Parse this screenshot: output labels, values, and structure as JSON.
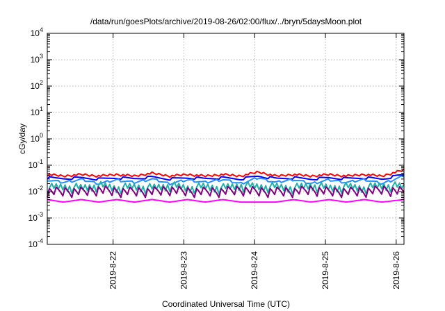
{
  "chart_data": {
    "type": "line",
    "title": "/data/run/goesPlots/archive/2019-08-26/02:00/flux/../bryn/5daysMoon.plot",
    "xlabel": "Coordinated Universal Time (UTC)",
    "ylabel": "cGy/day",
    "yscale": "log",
    "ylim_exponents": [
      -4,
      4
    ],
    "y_ticks": [
      {
        "base": "10",
        "exp": "-4"
      },
      {
        "base": "10",
        "exp": "-3"
      },
      {
        "base": "10",
        "exp": "-2"
      },
      {
        "base": "10",
        "exp": "-1"
      },
      {
        "base": "10",
        "exp": "0"
      },
      {
        "base": "10",
        "exp": "1"
      },
      {
        "base": "10",
        "exp": "2"
      },
      {
        "base": "10",
        "exp": "3"
      },
      {
        "base": "10",
        "exp": "4"
      }
    ],
    "x_ticks": [
      "2019-8-22",
      "2019-8-23",
      "2019-8-24",
      "2019-8-25",
      "2019-8-26"
    ],
    "xlim_days": [
      21.07,
      26.11
    ],
    "grid": true,
    "series": [
      {
        "color": "#ff0000",
        "x": [
          21.07,
          21.3,
          21.55,
          21.8,
          22.05,
          22.3,
          22.55,
          22.8,
          23.05,
          23.3,
          23.55,
          23.8,
          24.05,
          24.3,
          24.55,
          24.8,
          25.05,
          25.3,
          25.55,
          25.8,
          26.11
        ],
        "y": [
          0.04,
          0.035,
          0.04,
          0.035,
          0.04,
          0.035,
          0.045,
          0.035,
          0.04,
          0.035,
          0.04,
          0.035,
          0.05,
          0.035,
          0.04,
          0.035,
          0.04,
          0.035,
          0.04,
          0.035,
          0.06
        ]
      },
      {
        "color": "#0000ff",
        "x": [
          21.07,
          21.3,
          21.55,
          21.8,
          22.05,
          22.3,
          22.55,
          22.8,
          23.05,
          23.3,
          23.55,
          23.8,
          24.05,
          24.3,
          24.55,
          24.8,
          25.05,
          25.3,
          25.55,
          25.8,
          26.11
        ],
        "y": [
          0.03,
          0.028,
          0.03,
          0.027,
          0.03,
          0.028,
          0.032,
          0.027,
          0.03,
          0.028,
          0.03,
          0.027,
          0.035,
          0.028,
          0.03,
          0.027,
          0.03,
          0.028,
          0.03,
          0.027,
          0.04
        ]
      },
      {
        "color": "#1e90ff",
        "x": [
          21.07,
          21.3,
          21.55,
          21.8,
          22.05,
          22.3,
          22.55,
          22.8,
          23.05,
          23.3,
          23.55,
          23.8,
          24.05,
          24.3,
          24.55,
          24.8,
          25.05,
          25.3,
          25.55,
          25.8,
          26.11
        ],
        "y": [
          0.025,
          0.02,
          0.026,
          0.018,
          0.025,
          0.02,
          0.027,
          0.018,
          0.025,
          0.02,
          0.026,
          0.018,
          0.03,
          0.02,
          0.026,
          0.018,
          0.025,
          0.02,
          0.026,
          0.018,
          0.035
        ]
      },
      {
        "color": "#20b2aa",
        "x": [
          21.07,
          21.3,
          21.55,
          21.8,
          22.05,
          22.3,
          22.55,
          22.8,
          23.05,
          23.3,
          23.55,
          23.8,
          24.05,
          24.3,
          24.55,
          24.8,
          25.05,
          25.3,
          25.55,
          25.8,
          26.11
        ],
        "y": [
          0.008,
          0.009,
          0.008,
          0.01,
          0.008,
          0.009,
          0.008,
          0.01,
          0.008,
          0.009,
          0.008,
          0.01,
          0.009,
          0.009,
          0.008,
          0.01,
          0.008,
          0.009,
          0.008,
          0.01,
          0.009
        ]
      },
      {
        "color": "#800080",
        "x": [
          21.07,
          21.3,
          21.55,
          21.8,
          22.05,
          22.3,
          22.55,
          22.8,
          23.05,
          23.3,
          23.55,
          23.8,
          24.05,
          24.3,
          24.55,
          24.8,
          25.05,
          25.3,
          25.55,
          25.8,
          26.11
        ],
        "y": [
          0.006,
          0.006,
          0.006,
          0.007,
          0.006,
          0.006,
          0.006,
          0.007,
          0.006,
          0.006,
          0.006,
          0.007,
          0.006,
          0.006,
          0.006,
          0.007,
          0.006,
          0.006,
          0.006,
          0.007,
          0.006
        ]
      },
      {
        "color": "#ff00ff",
        "x": [
          21.07,
          21.3,
          21.55,
          21.8,
          22.05,
          22.3,
          22.55,
          22.8,
          23.05,
          23.3,
          23.55,
          23.8,
          24.05,
          24.3,
          24.55,
          24.8,
          25.05,
          25.3,
          25.55,
          25.8,
          26.11
        ],
        "y": [
          0.005,
          0.004,
          0.005,
          0.004,
          0.005,
          0.004,
          0.005,
          0.004,
          0.005,
          0.004,
          0.005,
          0.004,
          0.004,
          0.004,
          0.005,
          0.004,
          0.005,
          0.004,
          0.005,
          0.004,
          0.005
        ]
      }
    ]
  }
}
